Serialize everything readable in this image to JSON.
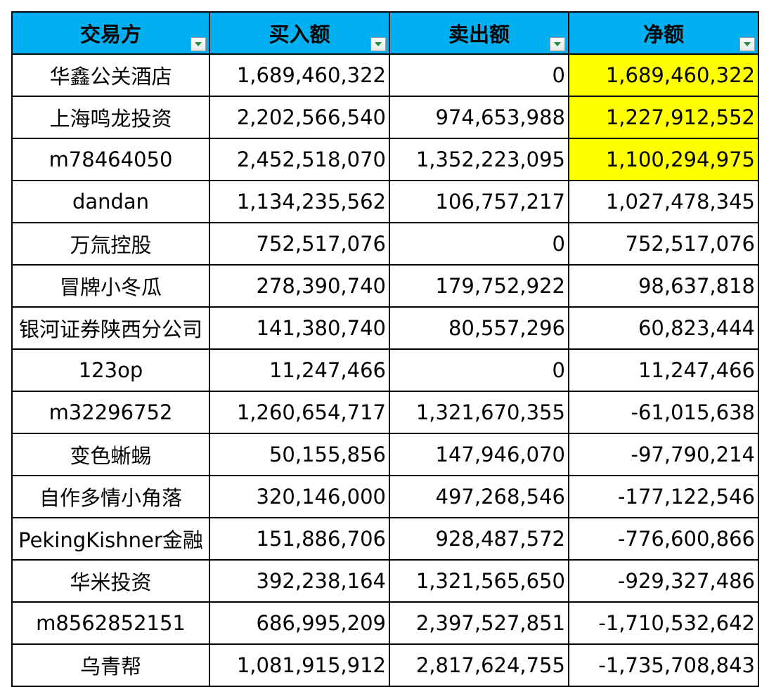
{
  "table": {
    "columns": [
      "交易方",
      "买入额",
      "卖出额",
      "净额"
    ],
    "rows": [
      {
        "name": "华鑫公关酒店",
        "buy": "1,689,460,322",
        "sell": "0",
        "net": "1,689,460,322",
        "highlight": true
      },
      {
        "name": "上海鸣龙投资",
        "buy": "2,202,566,540",
        "sell": "974,653,988",
        "net": "1,227,912,552",
        "highlight": true
      },
      {
        "name": "m78464050",
        "buy": "2,452,518,070",
        "sell": "1,352,223,095",
        "net": "1,100,294,975",
        "highlight": true
      },
      {
        "name": "dandan",
        "buy": "1,134,235,562",
        "sell": "106,757,217",
        "net": "1,027,478,345",
        "highlight": false
      },
      {
        "name": "万氚控股",
        "buy": "752,517,076",
        "sell": "0",
        "net": "752,517,076",
        "highlight": false
      },
      {
        "name": "冒牌小冬瓜",
        "buy": "278,390,740",
        "sell": "179,752,922",
        "net": "98,637,818",
        "highlight": false
      },
      {
        "name": "银河证券陕西分公司",
        "buy": "141,380,740",
        "sell": "80,557,296",
        "net": "60,823,444",
        "highlight": false
      },
      {
        "name": "123op",
        "buy": "11,247,466",
        "sell": "0",
        "net": "11,247,466",
        "highlight": false
      },
      {
        "name": "m32296752",
        "buy": "1,260,654,717",
        "sell": "1,321,670,355",
        "net": "-61,015,638",
        "highlight": false
      },
      {
        "name": "变色蜥蜴",
        "buy": "50,155,856",
        "sell": "147,946,070",
        "net": "-97,790,214",
        "highlight": false
      },
      {
        "name": "自作多情小角落",
        "buy": "320,146,000",
        "sell": "497,268,546",
        "net": "-177,122,546",
        "highlight": false
      },
      {
        "name": "PekingKishner金融",
        "buy": "151,886,706",
        "sell": "928,487,572",
        "net": "-776,600,866",
        "highlight": false
      },
      {
        "name": "华米投资",
        "buy": "392,238,164",
        "sell": "1,321,565,650",
        "net": "-929,327,486",
        "highlight": false
      },
      {
        "name": "m8562852151",
        "buy": "686,995,209",
        "sell": "2,397,527,851",
        "net": "-1,710,532,642",
        "highlight": false
      },
      {
        "name": "乌青帮",
        "buy": "1,081,915,912",
        "sell": "2,817,624,755",
        "net": "-1,735,708,843",
        "highlight": false
      }
    ]
  },
  "colors": {
    "header_bg": "#00b0f0",
    "highlight_bg": "#ffff00",
    "filter_arrow": "#1f8f3a"
  },
  "icons": {
    "filter": "filter-dropdown-icon"
  }
}
